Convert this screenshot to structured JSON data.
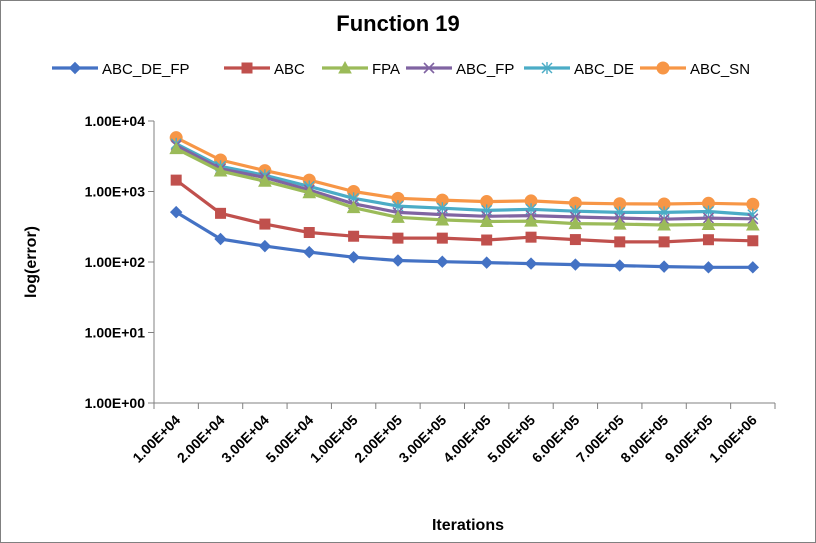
{
  "chart_data": {
    "type": "line",
    "title": "Function 19",
    "xlabel": "Iterations",
    "ylabel": "log(error)",
    "yscale": "log",
    "ylim": [
      1,
      10000
    ],
    "y_ticks": [
      "1.00E+00",
      "1.00E+01",
      "1.00E+02",
      "1.00E+03",
      "1.00E+04"
    ],
    "grid": false,
    "legend_position": "top",
    "categories": [
      "1.00E+04",
      "2.00E+04",
      "3.00E+04",
      "5.00E+04",
      "1.00E+05",
      "2.00E+05",
      "3.00E+05",
      "4.00E+05",
      "5.00E+05",
      "6.00E+05",
      "7.00E+05",
      "8.00E+05",
      "9.00E+05",
      "1.00E+06"
    ],
    "series": [
      {
        "name": "ABC_DE_FP",
        "color": "#4472C4",
        "marker": "diamond",
        "values": [
          510,
          212,
          168,
          138,
          117,
          105,
          101,
          98,
          95,
          92,
          89,
          86,
          84,
          84
        ]
      },
      {
        "name": "ABC",
        "color": "#C0504D",
        "marker": "square",
        "values": [
          1450,
          490,
          345,
          262,
          232,
          218,
          218,
          205,
          225,
          208,
          193,
          193,
          207,
          200
        ]
      },
      {
        "name": "FPA",
        "color": "#9BBB59",
        "marker": "triangle",
        "values": [
          4050,
          1950,
          1400,
          960,
          590,
          430,
          395,
          375,
          380,
          350,
          345,
          335,
          340,
          335
        ]
      },
      {
        "name": "ABC_FP",
        "color": "#8064A2",
        "marker": "x",
        "values": [
          4500,
          2100,
          1580,
          1050,
          670,
          505,
          470,
          445,
          455,
          435,
          420,
          405,
          420,
          410
        ]
      },
      {
        "name": "ABC_DE",
        "color": "#4BACC6",
        "marker": "asterisk",
        "values": [
          4750,
          2280,
          1700,
          1180,
          800,
          620,
          580,
          540,
          560,
          525,
          505,
          505,
          520,
          470
        ]
      },
      {
        "name": "ABC_SN",
        "color": "#F79646",
        "marker": "circle",
        "values": [
          5800,
          2800,
          1980,
          1450,
          1000,
          800,
          755,
          720,
          735,
          685,
          670,
          665,
          680,
          660
        ]
      }
    ]
  }
}
